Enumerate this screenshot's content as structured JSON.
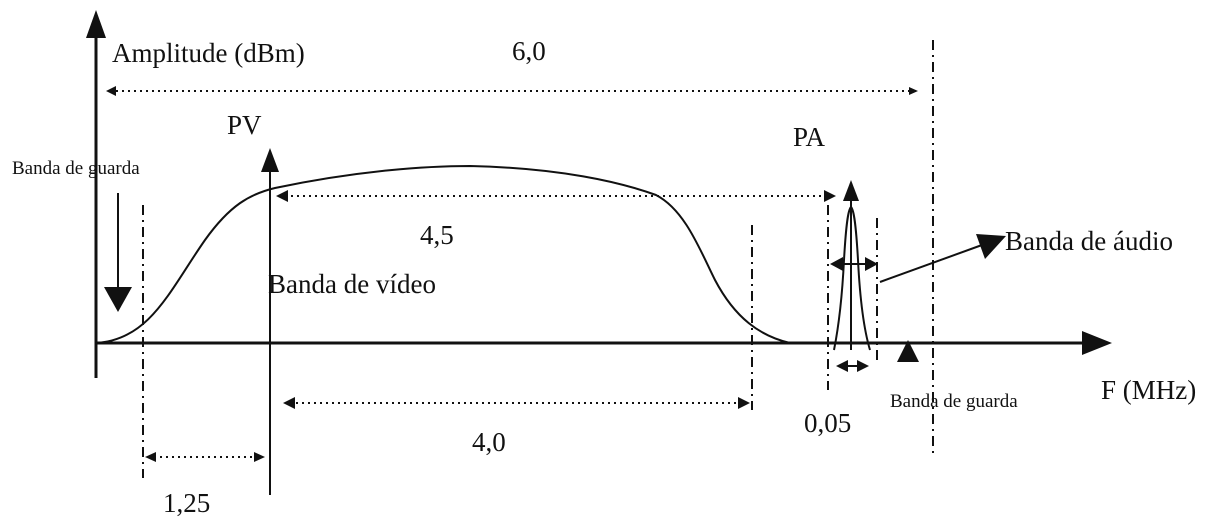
{
  "axes": {
    "y_label": "Amplitude (dBm)",
    "x_label": "F (MHz)"
  },
  "carriers": {
    "video": "PV",
    "audio": "PA"
  },
  "bands": {
    "video": "Banda de vídeo",
    "audio": "Banda de áudio",
    "guard_left": "Banda de guarda",
    "guard_right": "Banda de guarda"
  },
  "widths": {
    "total": "6,0",
    "video_upper": "4,5",
    "video_base": "4,0",
    "vestigial": "1,25",
    "audio": "0,05"
  },
  "colors": {
    "ink": "#111111",
    "background": "#ffffff"
  }
}
